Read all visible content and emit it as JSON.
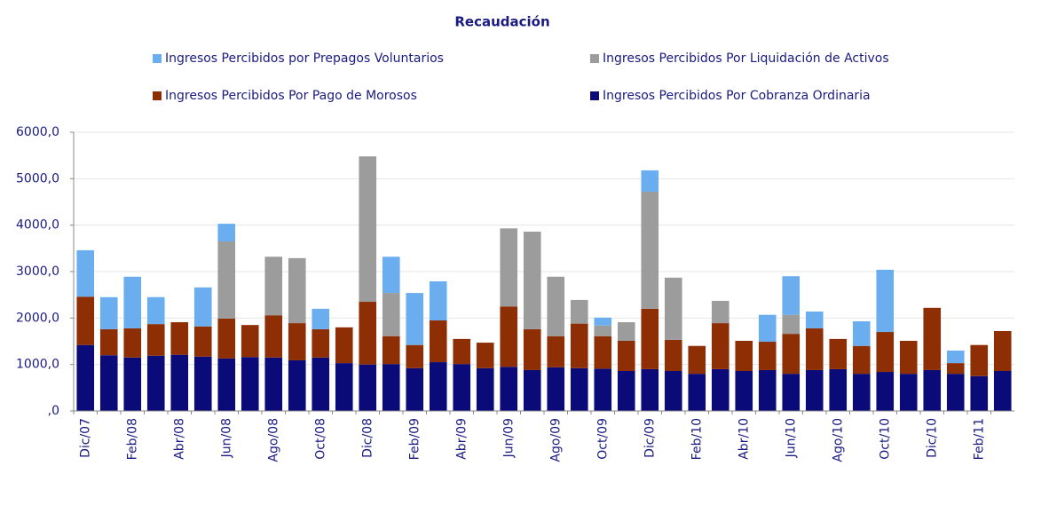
{
  "chart_data": {
    "type": "stacked_bar",
    "title": "Recaudación",
    "categories": [
      "Dic/07",
      null,
      "Feb/08",
      null,
      "Abr/08",
      null,
      "Jun/08",
      null,
      "Ago/08",
      null,
      "Oct/08",
      null,
      "Dic/08",
      null,
      "Feb/09",
      null,
      "Abr/09",
      null,
      "Jun/09",
      null,
      "Ago/09",
      null,
      "Oct/09",
      null,
      "Dic/09",
      null,
      "Feb/10",
      null,
      "Abr/10",
      null,
      "Jun/10",
      null,
      "Ago/10",
      null,
      "Oct/10",
      null,
      "Dic/10",
      null,
      "Feb/11",
      null
    ],
    "series": [
      {
        "name": "Ingresos Percibidos por Prepagos Voluntarios",
        "color": "#6aaef0",
        "values": [
          1000,
          690,
          1110,
          580,
          0,
          840,
          380,
          0,
          0,
          0,
          440,
          0,
          0,
          780,
          1120,
          840,
          0,
          0,
          0,
          0,
          0,
          0,
          170,
          0,
          460,
          0,
          0,
          0,
          0,
          580,
          830,
          360,
          0,
          530,
          1340,
          0,
          0,
          270,
          0,
          0
        ]
      },
      {
        "name": "Ingresos Percibidos Por Liquidación de Activos",
        "color": "#9c9c9c",
        "values": [
          0,
          0,
          0,
          0,
          0,
          0,
          1660,
          0,
          1260,
          1400,
          0,
          0,
          3130,
          930,
          0,
          0,
          0,
          0,
          1680,
          2100,
          1280,
          510,
          230,
          400,
          2520,
          1340,
          0,
          480,
          0,
          0,
          410,
          0,
          0,
          0,
          0,
          0,
          0,
          0,
          0,
          0
        ]
      },
      {
        "name": "Ingresos Percibidos Por Pago de Morosos",
        "color": "#8e2e04",
        "values": [
          1040,
          560,
          630,
          680,
          700,
          650,
          860,
          690,
          910,
          800,
          610,
          770,
          1350,
          600,
          500,
          900,
          540,
          550,
          1300,
          880,
          670,
          960,
          700,
          650,
          1300,
          670,
          600,
          990,
          650,
          610,
          860,
          900,
          650,
          600,
          860,
          710,
          1340,
          230,
          670,
          860
        ]
      },
      {
        "name": "Ingresos Percibidos Por Cobranza Ordinaria",
        "color": "#0a0a78",
        "values": [
          1420,
          1200,
          1150,
          1190,
          1210,
          1170,
          1130,
          1160,
          1150,
          1090,
          1150,
          1030,
          1000,
          1010,
          920,
          1050,
          1010,
          920,
          950,
          880,
          940,
          920,
          910,
          860,
          900,
          860,
          800,
          900,
          860,
          880,
          800,
          880,
          900,
          800,
          840,
          800,
          880,
          800,
          750,
          860
        ]
      }
    ],
    "ylim": [
      0,
      6000
    ],
    "yticks": [
      {
        "value": 0,
        "label": ",0"
      },
      {
        "value": 1000,
        "label": "1000,0"
      },
      {
        "value": 2000,
        "label": "2000,0"
      },
      {
        "value": 3000,
        "label": "3000,0"
      },
      {
        "value": 4000,
        "label": "4000,0"
      },
      {
        "value": 5000,
        "label": "5000,0"
      },
      {
        "value": 6000,
        "label": "6000,0"
      }
    ],
    "grid": true
  }
}
